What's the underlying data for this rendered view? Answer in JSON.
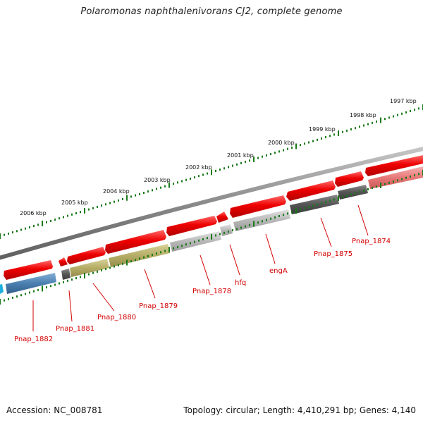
{
  "title": "Polaromonas naphthalenivorans CJ2, complete genome",
  "footer": {
    "accession": "Accession: NC_008781",
    "summary": "Topology: circular; Length: 4,410,291 bp; Genes: 4,140"
  },
  "scale_labels": [
    "1997 kbp",
    "1998 kbp",
    "1999 kbp",
    "2000 kbp",
    "2001 kbp",
    "2002 kbp",
    "2003 kbp",
    "2004 kbp",
    "2005 kbp",
    "2006 kbp"
  ],
  "gene_labels": [
    "Pnap_1874",
    "Pnap_1875",
    "engA",
    "hfq",
    "Pnap_1878",
    "Pnap_1879",
    "Pnap_1880",
    "Pnap_1881",
    "Pnap_1882"
  ],
  "colors": {
    "forward_gene": "#e60000",
    "light_red_gene": "#e87878",
    "backbone": "#8a8a8a",
    "tick_major": "#1a7a1a",
    "label_red": "#d40000",
    "dark_gray_gene": "#555555",
    "light_gray_gene": "#b8b8b8",
    "olive_gene": "#b5ad66",
    "blue_gene": "#4a7fb0",
    "cyan_gene": "#1ab0e0"
  }
}
